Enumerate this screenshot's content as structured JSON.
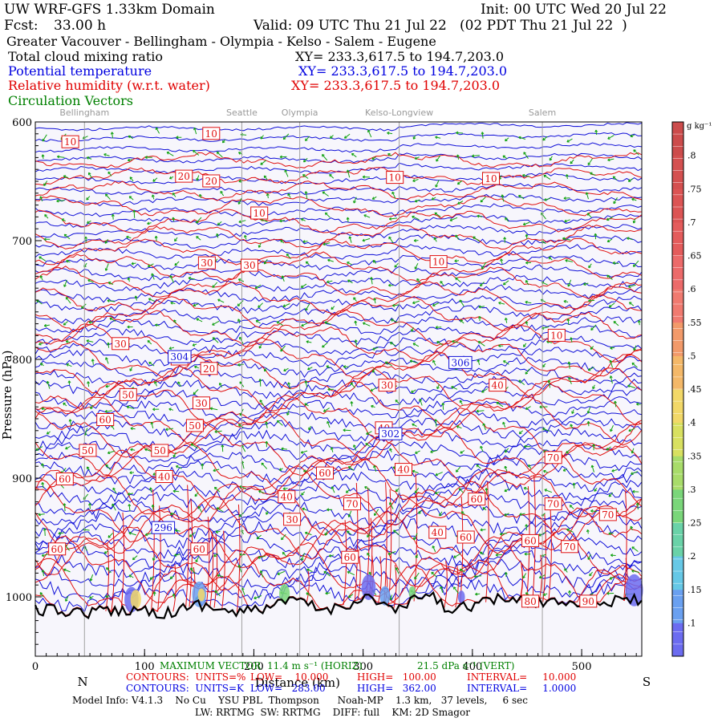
{
  "header": {
    "model_title": "UW WRF-GFS 1.33km Domain",
    "init": "Init: 00 UTC Wed 20 Jul 22",
    "fcst_label": "Fcst:",
    "fcst_value": "33.00 h",
    "valid": "Valid: 09 UTC Thu 21 Jul 22   (02 PDT Thu 21 Jul 22  )",
    "region": "Greater Vacouver - Bellingham - Olympia - Kelso - Salem - Eugene",
    "fields": [
      {
        "name": "Total cloud mixing ratio",
        "xy": "XY= 233.3,617.5 to 194.7,203.0",
        "color": "#000000"
      },
      {
        "name": "Potential temperature",
        "xy": "XY= 233.3,617.5 to 194.7,203.0",
        "color": "#0000e0"
      },
      {
        "name": "Relative humidity (w.r.t. water)",
        "xy": "XY= 233.3,617.5 to 194.7,203.0",
        "color": "#e00000"
      },
      {
        "name": "Circulation Vectors",
        "xy": "",
        "color": "#008000"
      }
    ]
  },
  "chart_data": {
    "type": "vertical cross-section",
    "xlabel": "Distance (km)",
    "ylabel": "Pressure (hPa)",
    "xlim": [
      0,
      555
    ],
    "ylim": [
      1050,
      600
    ],
    "x_ticks": [
      0,
      100,
      200,
      300,
      400,
      500
    ],
    "y_ticks": [
      600,
      700,
      800,
      900,
      1000
    ],
    "direction_left": "N",
    "direction_right": "S",
    "locations": [
      {
        "name": "Bellingham",
        "x": 45
      },
      {
        "name": "Seattle",
        "x": 189
      },
      {
        "name": "Olympia",
        "x": 242
      },
      {
        "name": "Kelso-Longview",
        "x": 333
      },
      {
        "name": "Salem",
        "x": 464
      }
    ],
    "terrain_pressure": [
      {
        "x": 0,
        "p": 1011
      },
      {
        "x": 50,
        "p": 1013
      },
      {
        "x": 95,
        "p": 1010
      },
      {
        "x": 120,
        "p": 1014
      },
      {
        "x": 150,
        "p": 1006
      },
      {
        "x": 185,
        "p": 1014
      },
      {
        "x": 215,
        "p": 1008
      },
      {
        "x": 240,
        "p": 1003
      },
      {
        "x": 265,
        "p": 1012
      },
      {
        "x": 305,
        "p": 1000
      },
      {
        "x": 330,
        "p": 1012
      },
      {
        "x": 360,
        "p": 997
      },
      {
        "x": 375,
        "p": 1010
      },
      {
        "x": 400,
        "p": 1007
      },
      {
        "x": 430,
        "p": 1001
      },
      {
        "x": 455,
        "p": 1005
      },
      {
        "x": 480,
        "p": 1003
      },
      {
        "x": 520,
        "p": 1005
      },
      {
        "x": 555,
        "p": 1002
      }
    ],
    "theta_contour_labels": [
      {
        "text": "304",
        "x": 132,
        "p": 798
      },
      {
        "text": "306",
        "x": 389,
        "p": 803
      },
      {
        "text": "302",
        "x": 325,
        "p": 863
      },
      {
        "text": "296",
        "x": 117,
        "p": 942
      }
    ],
    "rh_contour_labels": [
      {
        "text": "10",
        "x": 32,
        "p": 617
      },
      {
        "text": "10",
        "x": 161,
        "p": 610
      },
      {
        "text": "20",
        "x": 136,
        "p": 646
      },
      {
        "text": "20",
        "x": 161,
        "p": 650
      },
      {
        "text": "10",
        "x": 205,
        "p": 677
      },
      {
        "text": "10",
        "x": 329,
        "p": 647
      },
      {
        "text": "10",
        "x": 417,
        "p": 648
      },
      {
        "text": "30",
        "x": 157,
        "p": 719
      },
      {
        "text": "30",
        "x": 196,
        "p": 721
      },
      {
        "text": "10",
        "x": 369,
        "p": 718
      },
      {
        "text": "10",
        "x": 477,
        "p": 780
      },
      {
        "text": "30",
        "x": 78,
        "p": 787
      },
      {
        "text": "30",
        "x": 132,
        "p": 800
      },
      {
        "text": "20",
        "x": 159,
        "p": 808
      },
      {
        "text": "30",
        "x": 322,
        "p": 822
      },
      {
        "text": "40",
        "x": 423,
        "p": 822
      },
      {
        "text": "50",
        "x": 85,
        "p": 830
      },
      {
        "text": "30",
        "x": 152,
        "p": 837
      },
      {
        "text": "60",
        "x": 64,
        "p": 851
      },
      {
        "text": "50",
        "x": 146,
        "p": 856
      },
      {
        "text": "40",
        "x": 319,
        "p": 858
      },
      {
        "text": "50",
        "x": 48,
        "p": 877
      },
      {
        "text": "50",
        "x": 114,
        "p": 877
      },
      {
        "text": "70",
        "x": 474,
        "p": 883
      },
      {
        "text": "40",
        "x": 118,
        "p": 899
      },
      {
        "text": "40",
        "x": 337,
        "p": 893
      },
      {
        "text": "60",
        "x": 27,
        "p": 901
      },
      {
        "text": "60",
        "x": 265,
        "p": 896
      },
      {
        "text": "40",
        "x": 230,
        "p": 916
      },
      {
        "text": "70",
        "x": 290,
        "p": 922
      },
      {
        "text": "60",
        "x": 404,
        "p": 918
      },
      {
        "text": "30",
        "x": 235,
        "p": 935
      },
      {
        "text": "70",
        "x": 474,
        "p": 922
      },
      {
        "text": "70",
        "x": 524,
        "p": 931
      },
      {
        "text": "40",
        "x": 368,
        "p": 946
      },
      {
        "text": "60",
        "x": 394,
        "p": 950
      },
      {
        "text": "60",
        "x": 453,
        "p": 953
      },
      {
        "text": "70",
        "x": 489,
        "p": 958
      },
      {
        "text": "60",
        "x": 20,
        "p": 960
      },
      {
        "text": "60",
        "x": 150,
        "p": 960
      },
      {
        "text": "60",
        "x": 288,
        "p": 967
      },
      {
        "text": "80",
        "x": 453,
        "p": 1004
      },
      {
        "text": "90",
        "x": 506,
        "p": 1004
      }
    ],
    "colorbar": {
      "unit": "g kg⁻¹",
      "ticks": [
        ".1",
        ".15",
        ".2",
        ".25",
        ".3",
        ".35",
        ".4",
        ".45",
        ".5",
        ".55",
        ".6",
        ".65",
        ".7",
        ".75",
        ".8"
      ],
      "colors": [
        "#6c6cf0",
        "#6aa0f0",
        "#66c8e6",
        "#6ad2a8",
        "#7ad67a",
        "#a8dc6a",
        "#d8e060",
        "#f2d868",
        "#f4b868",
        "#f29a6a",
        "#f07a70",
        "#ec6a6a",
        "#e45c5c",
        "#dc5454",
        "#d45050",
        "#cc4c4c"
      ]
    }
  },
  "footer": {
    "max_vector_label": "MAXIMUM VECTOR",
    "max_vector_horiz": "11.4 m s⁻¹ (HORIZ)",
    "max_vector_vert": "21.5 dPa s⁻¹ (VERT)",
    "rh_line": {
      "contours": "CONTOURS:  UNITS=%",
      "low": "LOW=    10.000",
      "high": "HIGH=   100.00",
      "interval": "INTERVAL=     10.000"
    },
    "theta_line": {
      "contours": "CONTOURS:  UNITS=K",
      "low": "LOW=   283.00",
      "high": "HIGH=   362.00",
      "interval": "INTERVAL=     1.0000"
    },
    "model_info": "Model Info: V4.1.3    No Cu    YSU PBL  Thompson      Noah-MP    1.3 km,   37 levels,     6 sec",
    "physics": "LW: RRTMG  SW: RRTMG    DIFF: full    KM: 2D Smagor"
  }
}
